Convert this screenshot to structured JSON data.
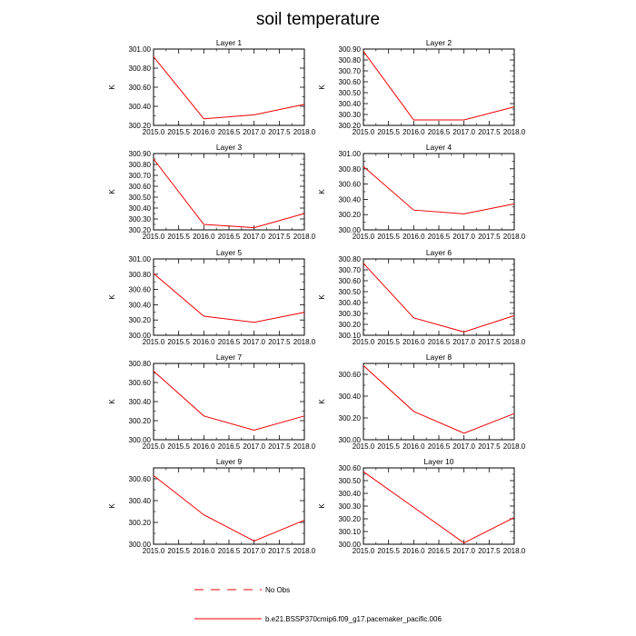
{
  "title": "soil temperature",
  "line_color": "#ee0000",
  "chart_data": [
    {
      "type": "line",
      "title": "Layer 1",
      "ylabel": "K",
      "xlim": [
        2015,
        2018
      ],
      "ylim": [
        300.2,
        301.0
      ],
      "yticks": [
        300.2,
        300.4,
        300.6,
        300.8,
        301.0
      ],
      "ytick_labels": [
        "300.20",
        "300.40",
        "300.60",
        "300.80",
        "301.00"
      ],
      "xticks": [
        2015,
        2015.5,
        2016,
        2016.5,
        2017,
        2017.5,
        2018
      ],
      "xtick_labels": [
        "2015.0",
        "2015.5",
        "2016.0",
        "2016.5",
        "2017.0",
        "2017.5",
        "2018.0"
      ],
      "series": [
        {
          "x": [
            2015,
            2016,
            2017,
            2018
          ],
          "y": [
            300.92,
            300.27,
            300.31,
            300.42
          ]
        }
      ]
    },
    {
      "type": "line",
      "title": "Layer 2",
      "ylabel": "K",
      "xlim": [
        2015,
        2018
      ],
      "ylim": [
        300.2,
        300.9
      ],
      "yticks": [
        300.2,
        300.3,
        300.4,
        300.5,
        300.6,
        300.7,
        300.8,
        300.9
      ],
      "ytick_labels": [
        "300.20",
        "300.30",
        "300.40",
        "300.50",
        "300.60",
        "300.70",
        "300.80",
        "300.90"
      ],
      "xticks": [
        2015,
        2015.5,
        2016,
        2016.5,
        2017,
        2017.5,
        2018
      ],
      "xtick_labels": [
        "2015.0",
        "2015.5",
        "2016.0",
        "2016.5",
        "2017.0",
        "2017.5",
        "2018.0"
      ],
      "series": [
        {
          "x": [
            2015,
            2016,
            2017,
            2018
          ],
          "y": [
            300.88,
            300.25,
            300.25,
            300.37
          ]
        }
      ]
    },
    {
      "type": "line",
      "title": "Layer 3",
      "ylabel": "K",
      "xlim": [
        2015,
        2018
      ],
      "ylim": [
        300.2,
        300.9
      ],
      "yticks": [
        300.2,
        300.3,
        300.4,
        300.5,
        300.6,
        300.7,
        300.8,
        300.9
      ],
      "ytick_labels": [
        "300.20",
        "300.30",
        "300.40",
        "300.50",
        "300.60",
        "300.70",
        "300.80",
        "300.90"
      ],
      "xticks": [
        2015,
        2015.5,
        2016,
        2016.5,
        2017,
        2017.5,
        2018
      ],
      "xtick_labels": [
        "2015.0",
        "2015.5",
        "2016.0",
        "2016.5",
        "2017.0",
        "2017.5",
        "2018.0"
      ],
      "series": [
        {
          "x": [
            2015,
            2016,
            2017,
            2018
          ],
          "y": [
            300.85,
            300.25,
            300.22,
            300.35
          ]
        }
      ]
    },
    {
      "type": "line",
      "title": "Layer 4",
      "ylabel": "K",
      "xlim": [
        2015,
        2018
      ],
      "ylim": [
        300.0,
        301.0
      ],
      "yticks": [
        300.0,
        300.2,
        300.4,
        300.6,
        300.8,
        301.0
      ],
      "ytick_labels": [
        "300.00",
        "300.20",
        "300.40",
        "300.60",
        "300.80",
        "301.00"
      ],
      "xticks": [
        2015,
        2015.5,
        2016,
        2016.5,
        2017,
        2017.5,
        2018
      ],
      "xtick_labels": [
        "2015.0",
        "2015.5",
        "2016.0",
        "2016.5",
        "2017.0",
        "2017.5",
        "2018.0"
      ],
      "series": [
        {
          "x": [
            2015,
            2016,
            2017,
            2018
          ],
          "y": [
            300.83,
            300.26,
            300.21,
            300.34
          ]
        }
      ]
    },
    {
      "type": "line",
      "title": "Layer 5",
      "ylabel": "K",
      "xlim": [
        2015,
        2018
      ],
      "ylim": [
        300.0,
        301.0
      ],
      "yticks": [
        300.0,
        300.2,
        300.4,
        300.6,
        300.8,
        301.0
      ],
      "ytick_labels": [
        "300.00",
        "300.20",
        "300.40",
        "300.60",
        "300.80",
        "301.00"
      ],
      "xticks": [
        2015,
        2015.5,
        2016,
        2016.5,
        2017,
        2017.5,
        2018
      ],
      "xtick_labels": [
        "2015.0",
        "2015.5",
        "2016.0",
        "2016.5",
        "2017.0",
        "2017.5",
        "2018.0"
      ],
      "series": [
        {
          "x": [
            2015,
            2016,
            2017,
            2018
          ],
          "y": [
            300.81,
            300.25,
            300.17,
            300.3
          ]
        }
      ]
    },
    {
      "type": "line",
      "title": "Layer 6",
      "ylabel": "K",
      "xlim": [
        2015,
        2018
      ],
      "ylim": [
        300.1,
        300.8
      ],
      "yticks": [
        300.1,
        300.2,
        300.3,
        300.4,
        300.5,
        300.6,
        300.7,
        300.8
      ],
      "ytick_labels": [
        "300.10",
        "300.20",
        "300.30",
        "300.40",
        "300.50",
        "300.60",
        "300.70",
        "300.80"
      ],
      "xticks": [
        2015,
        2015.5,
        2016,
        2016.5,
        2017,
        2017.5,
        2018
      ],
      "xtick_labels": [
        "2015.0",
        "2015.5",
        "2016.0",
        "2016.5",
        "2017.0",
        "2017.5",
        "2018.0"
      ],
      "series": [
        {
          "x": [
            2015,
            2016,
            2017,
            2018
          ],
          "y": [
            300.76,
            300.26,
            300.13,
            300.28
          ]
        }
      ]
    },
    {
      "type": "line",
      "title": "Layer 7",
      "ylabel": "K",
      "xlim": [
        2015,
        2018
      ],
      "ylim": [
        300.0,
        300.8
      ],
      "yticks": [
        300.0,
        300.2,
        300.4,
        300.6,
        300.8
      ],
      "ytick_labels": [
        "300.00",
        "300.20",
        "300.40",
        "300.60",
        "300.80"
      ],
      "xticks": [
        2015,
        2015.5,
        2016,
        2016.5,
        2017,
        2017.5,
        2018
      ],
      "xtick_labels": [
        "2015.0",
        "2015.5",
        "2016.0",
        "2016.5",
        "2017.0",
        "2017.5",
        "2018.0"
      ],
      "series": [
        {
          "x": [
            2015,
            2016,
            2017,
            2018
          ],
          "y": [
            300.72,
            300.25,
            300.1,
            300.25
          ]
        }
      ]
    },
    {
      "type": "line",
      "title": "Layer 8",
      "ylabel": "K",
      "xlim": [
        2015,
        2018
      ],
      "ylim": [
        300.0,
        300.7
      ],
      "yticks": [
        300.0,
        300.2,
        300.4,
        300.6
      ],
      "ytick_labels": [
        "300.00",
        "300.20",
        "300.40",
        "300.60"
      ],
      "xticks": [
        2015,
        2015.5,
        2016,
        2016.5,
        2017,
        2017.5,
        2018
      ],
      "xtick_labels": [
        "2015.0",
        "2015.5",
        "2016.0",
        "2016.5",
        "2017.0",
        "2017.5",
        "2018.0"
      ],
      "series": [
        {
          "x": [
            2015,
            2016,
            2017,
            2018
          ],
          "y": [
            300.68,
            300.26,
            300.06,
            300.24
          ]
        }
      ]
    },
    {
      "type": "line",
      "title": "Layer 9",
      "ylabel": "K",
      "xlim": [
        2015,
        2018
      ],
      "ylim": [
        300.0,
        300.7
      ],
      "yticks": [
        300.0,
        300.2,
        300.4,
        300.6
      ],
      "ytick_labels": [
        "300.00",
        "300.20",
        "300.40",
        "300.60"
      ],
      "xticks": [
        2015,
        2015.5,
        2016,
        2016.5,
        2017,
        2017.5,
        2018
      ],
      "xtick_labels": [
        "2015.0",
        "2015.5",
        "2016.0",
        "2016.5",
        "2017.0",
        "2017.5",
        "2018.0"
      ],
      "series": [
        {
          "x": [
            2015,
            2016,
            2017,
            2018
          ],
          "y": [
            300.63,
            300.27,
            300.03,
            300.22
          ]
        }
      ]
    },
    {
      "type": "line",
      "title": "Layer 10",
      "ylabel": "K",
      "xlim": [
        2015,
        2018
      ],
      "ylim": [
        300.0,
        300.6
      ],
      "yticks": [
        300.0,
        300.1,
        300.2,
        300.3,
        300.4,
        300.5,
        300.6
      ],
      "ytick_labels": [
        "300.00",
        "300.10",
        "300.20",
        "300.30",
        "300.40",
        "300.50",
        "300.60"
      ],
      "xticks": [
        2015,
        2015.5,
        2016,
        2016.5,
        2017,
        2017.5,
        2018
      ],
      "xtick_labels": [
        "2015.0",
        "2015.5",
        "2016.0",
        "2016.5",
        "2017.0",
        "2017.5",
        "2018.0"
      ],
      "series": [
        {
          "x": [
            2015,
            2016,
            2017,
            2018
          ],
          "y": [
            300.57,
            300.29,
            300.01,
            300.21
          ]
        }
      ]
    }
  ],
  "legend": [
    {
      "label": "No Obs",
      "style": "dashed"
    },
    {
      "label": "b.e21.BSSP370cmip6.f09_g17.pacemaker_pacific.006",
      "style": "solid"
    }
  ]
}
